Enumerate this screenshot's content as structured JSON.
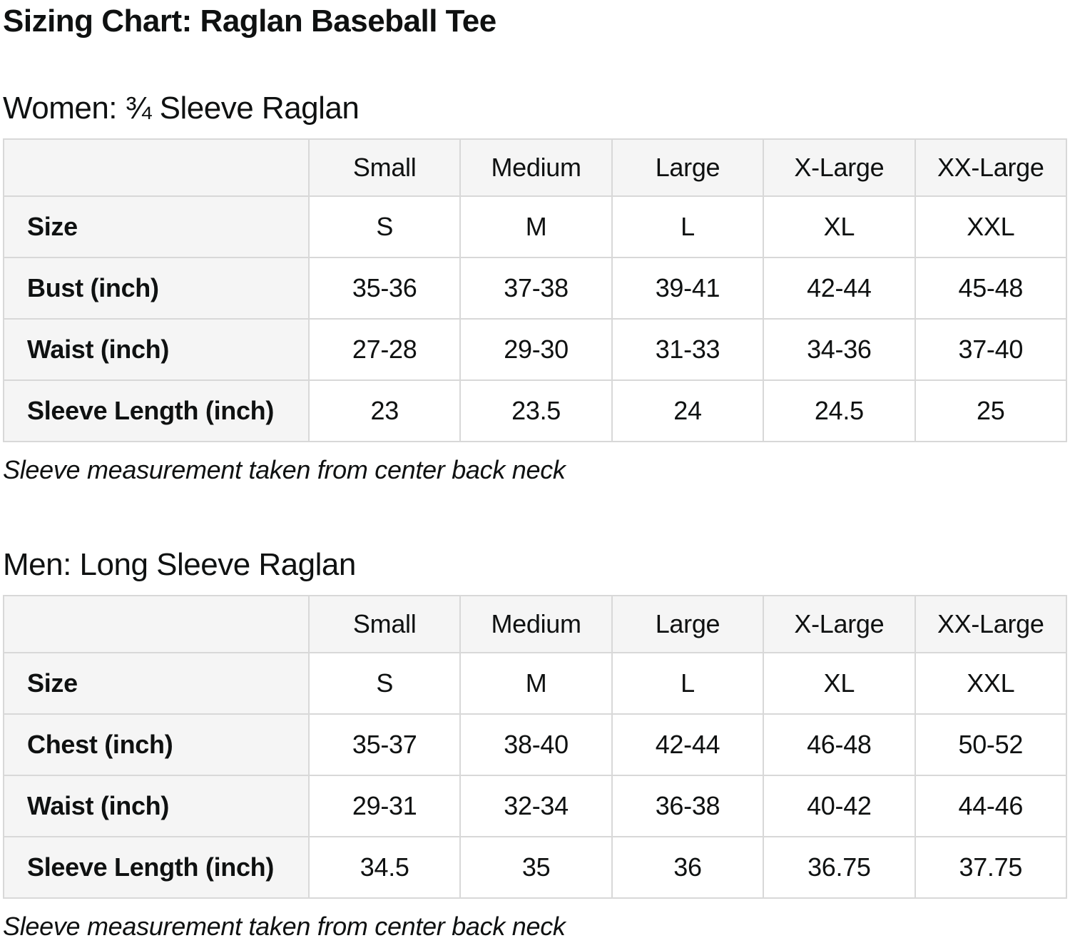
{
  "page": {
    "title": "Sizing Chart: Raglan Baseball Tee"
  },
  "colors": {
    "header_background": "#f5f5f5",
    "label_column_background": "#f5f5f5",
    "cell_background": "#ffffff",
    "border": "#d8d8d8",
    "text": "#0f1111"
  },
  "sections": [
    {
      "heading": "Women: ¾ Sleeve Raglan",
      "note": "Sleeve measurement taken from center back neck",
      "table": {
        "column_headers": [
          "",
          "Small",
          "Medium",
          "Large",
          "X-Large",
          "XX-Large"
        ],
        "rows": [
          {
            "label": "Size",
            "values": [
              "S",
              "M",
              "L",
              "XL",
              "XXL"
            ]
          },
          {
            "label": "Bust (inch)",
            "values": [
              "35-36",
              "37-38",
              "39-41",
              "42-44",
              "45-48"
            ]
          },
          {
            "label": "Waist (inch)",
            "values": [
              "27-28",
              "29-30",
              "31-33",
              "34-36",
              "37-40"
            ]
          },
          {
            "label": "Sleeve Length (inch)",
            "values": [
              "23",
              "23.5",
              "24",
              "24.5",
              "25"
            ]
          }
        ]
      }
    },
    {
      "heading": "Men: Long Sleeve Raglan",
      "note": "Sleeve measurement taken from center back neck",
      "table": {
        "column_headers": [
          "",
          "Small",
          "Medium",
          "Large",
          "X-Large",
          "XX-Large"
        ],
        "rows": [
          {
            "label": "Size",
            "values": [
              "S",
              "M",
              "L",
              "XL",
              "XXL"
            ]
          },
          {
            "label": "Chest (inch)",
            "values": [
              "35-37",
              "38-40",
              "42-44",
              "46-48",
              "50-52"
            ]
          },
          {
            "label": "Waist (inch)",
            "values": [
              "29-31",
              "32-34",
              "36-38",
              "40-42",
              "44-46"
            ]
          },
          {
            "label": "Sleeve Length (inch)",
            "values": [
              "34.5",
              "35",
              "36",
              "36.75",
              "37.75"
            ]
          }
        ]
      }
    }
  ]
}
